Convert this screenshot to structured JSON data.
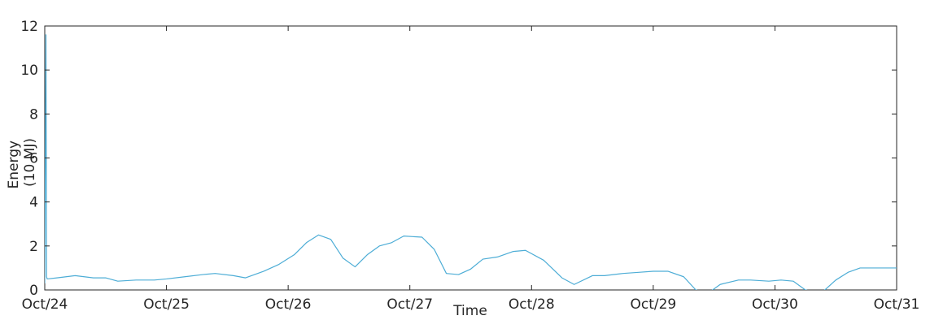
{
  "chart_data": {
    "type": "line",
    "xlabel": "Time",
    "ylabel": [
      "Energy",
      "(10 MJ)"
    ],
    "ylim": [
      0,
      12
    ],
    "xlim": [
      "Oct/24",
      "Oct/31"
    ],
    "grid": false,
    "y_ticks": [
      0,
      2,
      4,
      6,
      8,
      10,
      12
    ],
    "x_ticks": [
      {
        "day": 24,
        "label": "Oct/24"
      },
      {
        "day": 25,
        "label": "Oct/25"
      },
      {
        "day": 26,
        "label": "Oct/26"
      },
      {
        "day": 27,
        "label": "Oct/27"
      },
      {
        "day": 28,
        "label": "Oct/28"
      },
      {
        "day": 29,
        "label": "Oct/29"
      },
      {
        "day": 30,
        "label": "Oct/30"
      },
      {
        "day": 31,
        "label": "Oct/31"
      }
    ],
    "series": [
      {
        "color": "#4dadd6",
        "x_day": [
          24.0,
          24.01,
          24.015,
          24.02,
          24.1,
          24.25,
          24.4,
          24.5,
          24.6,
          24.75,
          24.9,
          25.0,
          25.15,
          25.3,
          25.4,
          25.55,
          25.65,
          25.8,
          25.92,
          26.05,
          26.15,
          26.25,
          26.35,
          26.45,
          26.55,
          26.65,
          26.75,
          26.85,
          26.95,
          27.1,
          27.2,
          27.3,
          27.4,
          27.5,
          27.6,
          27.72,
          27.85,
          27.95,
          28.1,
          28.25,
          28.35,
          28.5,
          28.6,
          28.75,
          28.88,
          29.0,
          29.12,
          29.25,
          29.35,
          29.45,
          29.55,
          29.7,
          29.8,
          29.95,
          30.05,
          30.15,
          30.25,
          30.38,
          30.5,
          30.6,
          30.7,
          30.82,
          30.9,
          31.0
        ],
        "y": [
          0.3,
          11.6,
          0.6,
          0.5,
          0.55,
          0.65,
          0.55,
          0.55,
          0.4,
          0.45,
          0.45,
          0.5,
          0.6,
          0.7,
          0.75,
          0.65,
          0.55,
          0.85,
          1.15,
          1.6,
          2.15,
          2.5,
          2.3,
          1.45,
          1.05,
          1.6,
          2.0,
          2.15,
          2.45,
          2.4,
          1.85,
          0.75,
          0.7,
          0.95,
          1.4,
          1.5,
          1.75,
          1.8,
          1.35,
          0.55,
          0.25,
          0.65,
          0.65,
          0.75,
          0.8,
          0.85,
          0.85,
          0.6,
          0.0,
          -0.15,
          0.25,
          0.45,
          0.45,
          0.4,
          0.45,
          0.4,
          0.0,
          -0.15,
          0.45,
          0.8,
          1.0,
          1.0,
          1.0,
          1.0
        ]
      }
    ]
  }
}
